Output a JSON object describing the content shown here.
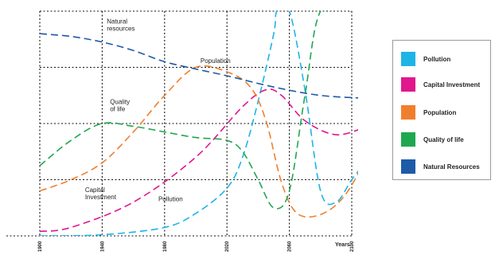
{
  "chart_data": {
    "type": "line",
    "x_ticks": [
      "1900",
      "1940",
      "1980",
      "2020",
      "2060",
      "2100"
    ],
    "x_unit_label": "Years",
    "x_range": [
      1900,
      2100
    ],
    "y_range": [
      0,
      4
    ],
    "grid": true,
    "legend_placement": "right",
    "series": [
      {
        "name": "Pollution",
        "color": "#1eb4e6",
        "points": [
          [
            1900,
            0
          ],
          [
            1940,
            0.02
          ],
          [
            1980,
            0.15
          ],
          [
            2000,
            0.4
          ],
          [
            2020,
            0.85
          ],
          [
            2030,
            1.4
          ],
          [
            2040,
            2.4
          ],
          [
            2050,
            3.6
          ],
          [
            2052,
            4.0
          ],
          [
            2060,
            4.0
          ],
          [
            2070,
            2.6
          ],
          [
            2080,
            0.8
          ],
          [
            2090,
            0.6
          ],
          [
            2100,
            1.0
          ],
          [
            2110,
            1.35
          ]
        ]
      },
      {
        "name": "Capital Investment",
        "color": "#e0178d",
        "points": [
          [
            1900,
            0.08
          ],
          [
            1920,
            0.15
          ],
          [
            1960,
            0.6
          ],
          [
            2000,
            1.4
          ],
          [
            2030,
            2.3
          ],
          [
            2045,
            2.6
          ],
          [
            2055,
            2.5
          ],
          [
            2070,
            2.05
          ],
          [
            2090,
            1.8
          ],
          [
            2110,
            1.95
          ]
        ]
      },
      {
        "name": "Population",
        "color": "#f07f2d",
        "points": [
          [
            1900,
            0.8
          ],
          [
            1920,
            1.0
          ],
          [
            1940,
            1.3
          ],
          [
            1960,
            1.85
          ],
          [
            1980,
            2.5
          ],
          [
            2000,
            3.0
          ],
          [
            2020,
            2.92
          ],
          [
            2035,
            2.65
          ],
          [
            2045,
            2.05
          ],
          [
            2055,
            0.95
          ],
          [
            2065,
            0.4
          ],
          [
            2080,
            0.38
          ],
          [
            2095,
            0.7
          ],
          [
            2110,
            1.4
          ]
        ]
      },
      {
        "name": "Quality of life",
        "color": "#1fa84f",
        "points": [
          [
            1900,
            1.25
          ],
          [
            1920,
            1.7
          ],
          [
            1940,
            2.0
          ],
          [
            1960,
            1.95
          ],
          [
            1980,
            1.85
          ],
          [
            2000,
            1.75
          ],
          [
            2020,
            1.7
          ],
          [
            2030,
            1.5
          ],
          [
            2040,
            1.0
          ],
          [
            2050,
            0.5
          ],
          [
            2060,
            0.8
          ],
          [
            2070,
            2.5
          ],
          [
            2080,
            4.0
          ],
          [
            2100,
            4.0
          ]
        ]
      },
      {
        "name": "Natural Resources",
        "color": "#1d5aa8",
        "points": [
          [
            1900,
            3.6
          ],
          [
            1920,
            3.55
          ],
          [
            1940,
            3.45
          ],
          [
            1960,
            3.3
          ],
          [
            1980,
            3.1
          ],
          [
            2000,
            2.97
          ],
          [
            2020,
            2.85
          ],
          [
            2050,
            2.65
          ],
          [
            2080,
            2.5
          ],
          [
            2110,
            2.45
          ]
        ]
      }
    ],
    "annotations": [
      {
        "lines": [
          "Natural",
          "resources"
        ],
        "x": 1943,
        "y": 3.78
      },
      {
        "lines": [
          "Population"
        ],
        "x": 2003,
        "y": 3.08
      },
      {
        "lines": [
          "Quality",
          "of life"
        ],
        "x": 1945,
        "y": 2.35
      },
      {
        "lines": [
          "Capital",
          "Investment"
        ],
        "x": 1929,
        "y": 0.78
      },
      {
        "lines": [
          "Pollution"
        ],
        "x": 1976,
        "y": 0.62
      }
    ]
  }
}
